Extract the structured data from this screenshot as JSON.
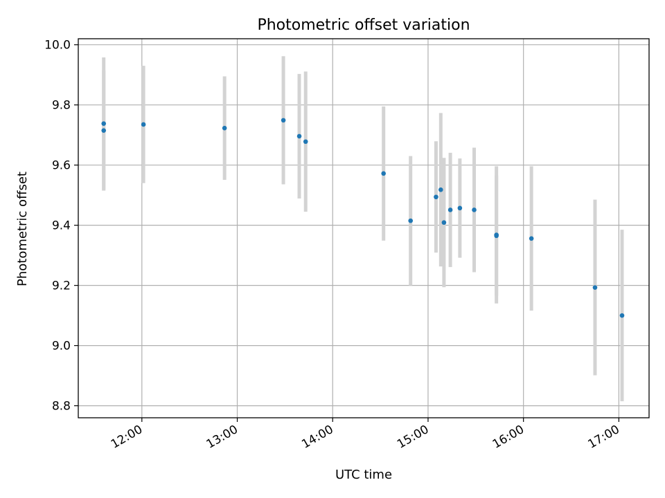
{
  "chart_data": {
    "type": "scatter",
    "title": "Photometric offset variation",
    "xlabel": "UTC time",
    "ylabel": "Photometric offset",
    "x_ticks": [
      "12:00",
      "13:00",
      "14:00",
      "15:00",
      "16:00",
      "17:00"
    ],
    "y_ticks": [
      "8.8",
      "9.0",
      "9.2",
      "9.4",
      "9.6",
      "9.8",
      "10.0"
    ],
    "xlim": [
      "11:20",
      "17:19"
    ],
    "ylim": [
      8.76,
      10.02
    ],
    "grid": true,
    "colors": {
      "point": "#1f77b4",
      "errorbar": "#d3d3d3",
      "grid": "#b0b0b0"
    },
    "series": [
      {
        "points": [
          {
            "x": "11:36",
            "y": 9.738,
            "yerr": 0.22
          },
          {
            "x": "11:36",
            "y": 9.715,
            "yerr": 0.2
          },
          {
            "x": "12:01",
            "y": 9.735,
            "yerr": 0.195
          },
          {
            "x": "12:52",
            "y": 9.723,
            "yerr": 0.172
          },
          {
            "x": "13:29",
            "y": 9.749,
            "yerr": 0.213
          },
          {
            "x": "13:39",
            "y": 9.696,
            "yerr": 0.207
          },
          {
            "x": "13:43",
            "y": 9.678,
            "yerr": 0.233
          },
          {
            "x": "14:32",
            "y": 9.572,
            "yerr": 0.223
          },
          {
            "x": "14:49",
            "y": 9.415,
            "yerr": 0.215
          },
          {
            "x": "15:05",
            "y": 9.494,
            "yerr": 0.185
          },
          {
            "x": "15:08",
            "y": 9.518,
            "yerr": 0.255
          },
          {
            "x": "15:10",
            "y": 9.409,
            "yerr": 0.215
          },
          {
            "x": "15:14",
            "y": 9.451,
            "yerr": 0.19
          },
          {
            "x": "15:20",
            "y": 9.457,
            "yerr": 0.165
          },
          {
            "x": "15:29",
            "y": 9.451,
            "yerr": 0.207
          },
          {
            "x": "15:43",
            "y": 9.365,
            "yerr": 0.2
          },
          {
            "x": "15:43",
            "y": 9.368,
            "yerr": 0.228
          },
          {
            "x": "16:05",
            "y": 9.356,
            "yerr": 0.24
          },
          {
            "x": "16:45",
            "y": 9.193,
            "yerr": 0.292
          },
          {
            "x": "17:02",
            "y": 9.1,
            "yerr": 0.285
          }
        ]
      }
    ]
  }
}
